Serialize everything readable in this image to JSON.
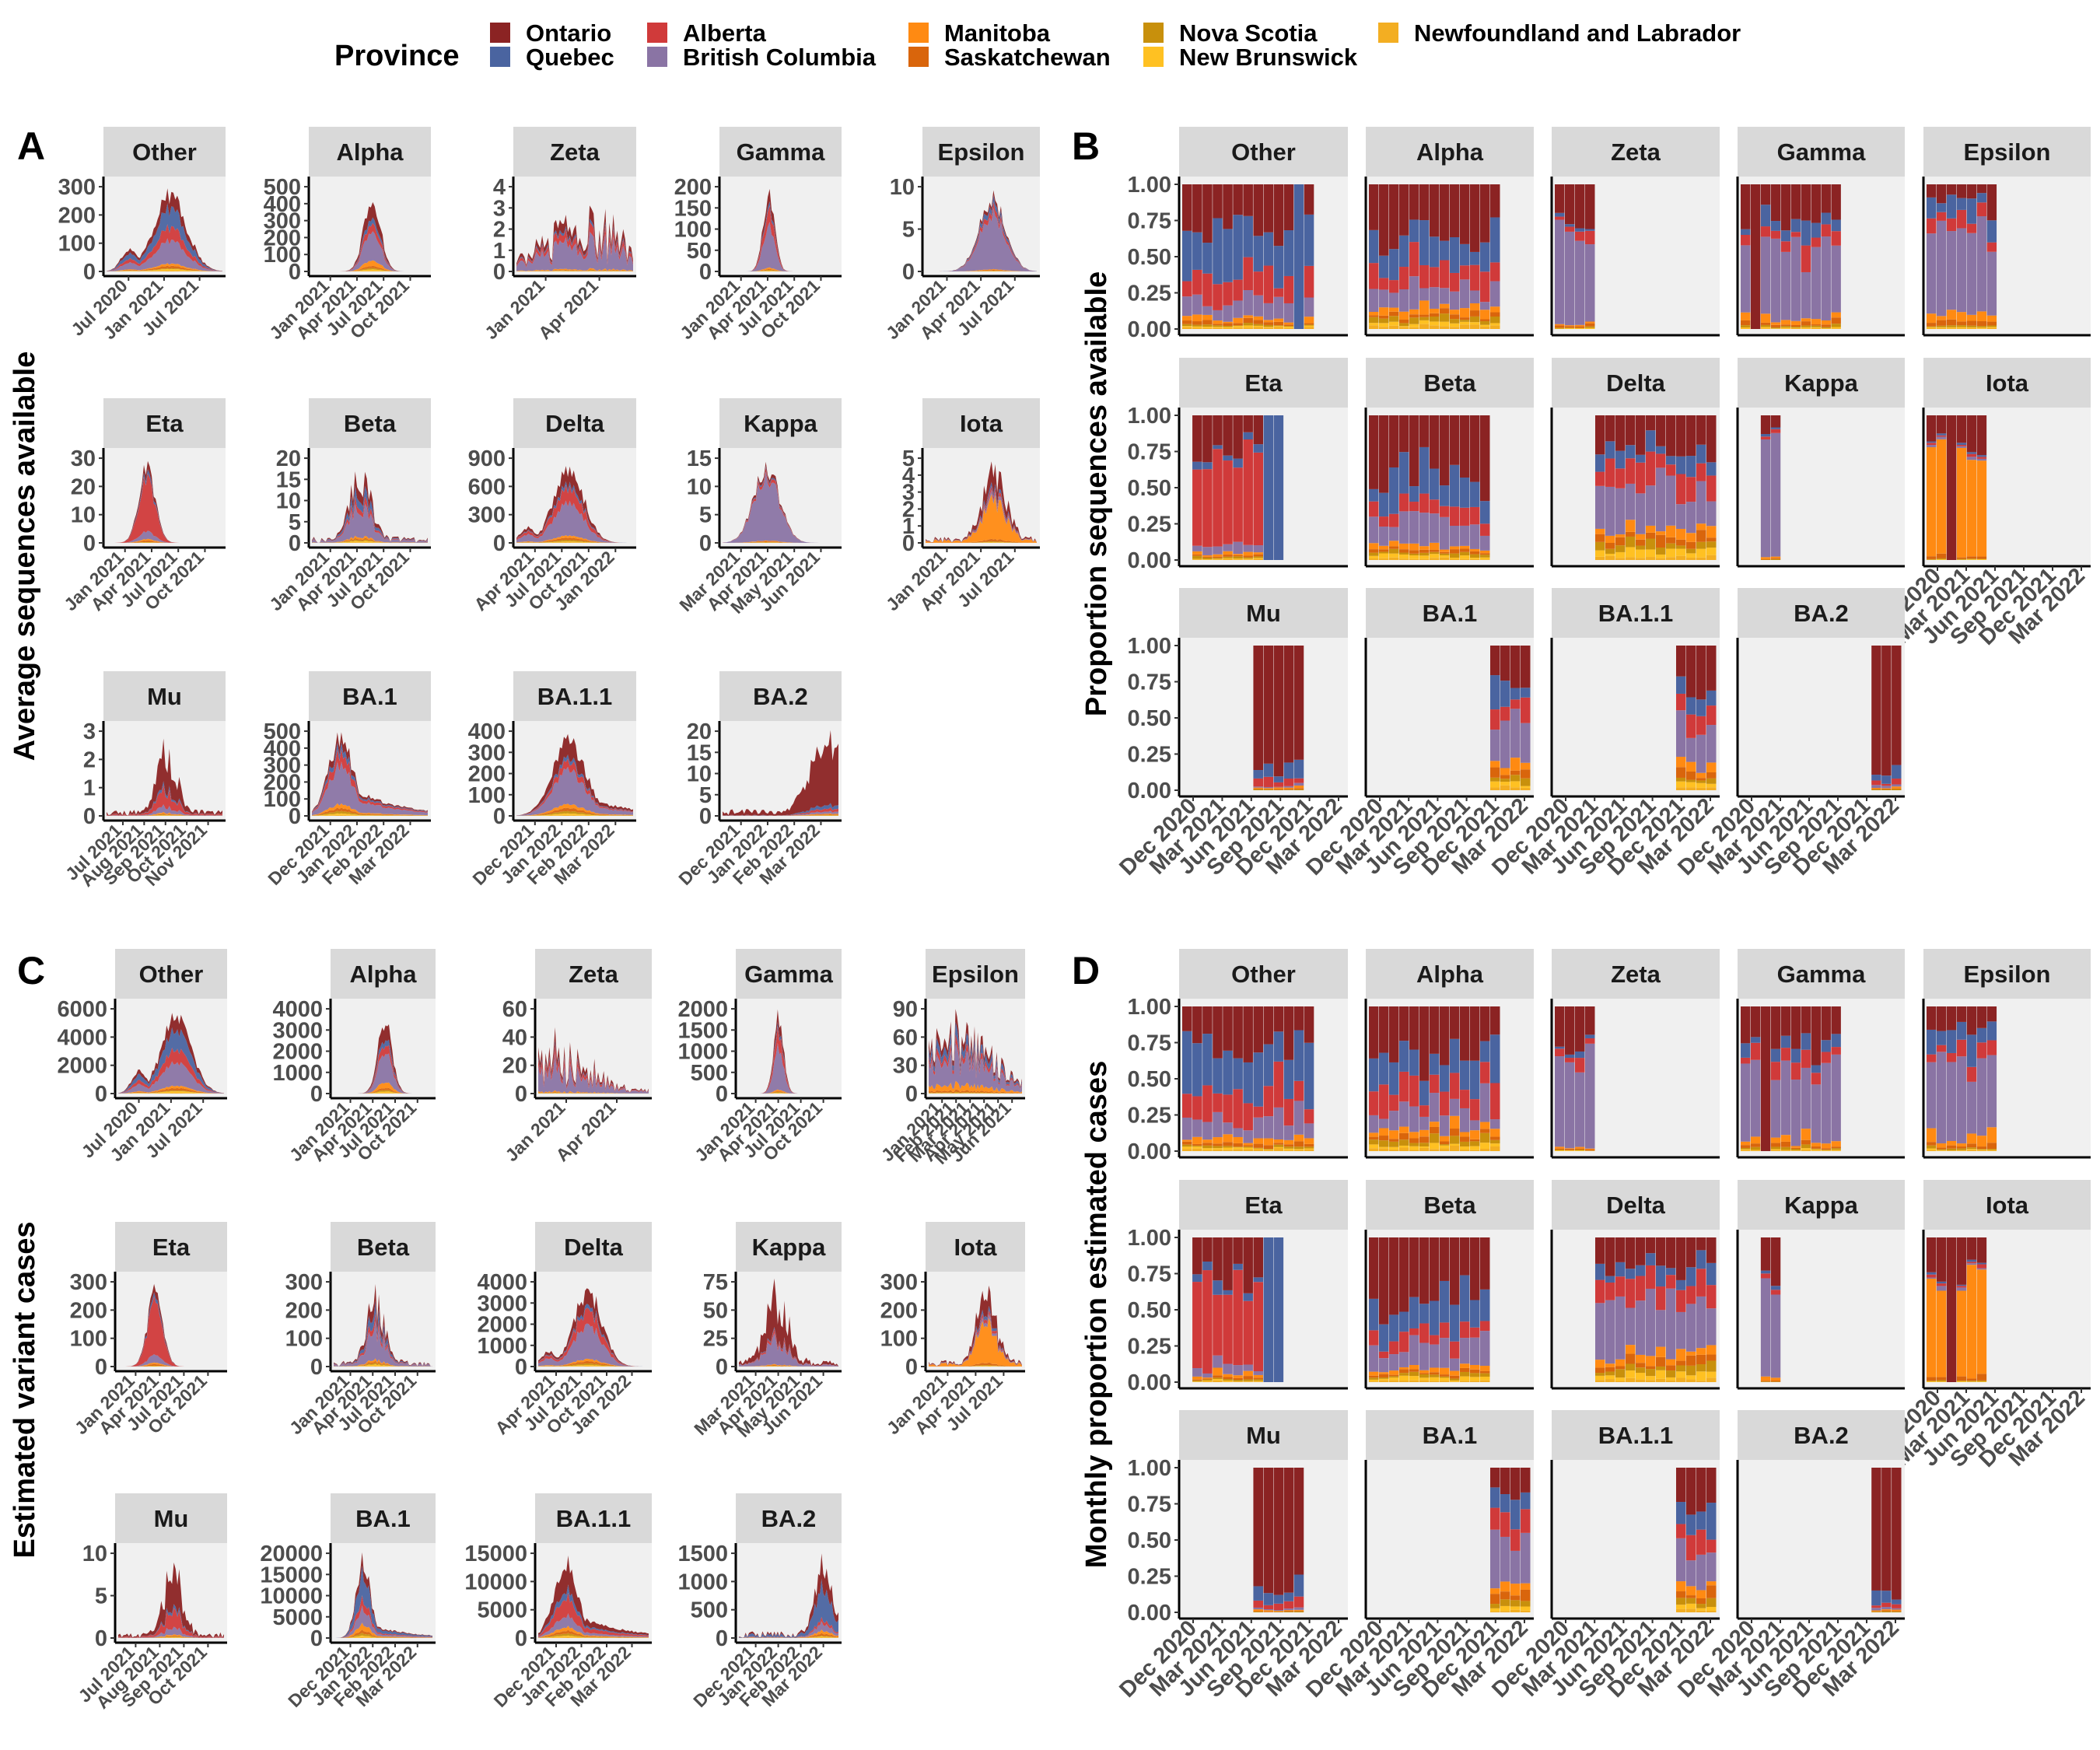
{
  "legend": {
    "title": "Province",
    "items": [
      {
        "name": "Ontario",
        "color": "#8B2323"
      },
      {
        "name": "Quebec",
        "color": "#4A64A0"
      },
      {
        "name": "Alberta",
        "color": "#D03A3A"
      },
      {
        "name": "British Columbia",
        "color": "#8A74A4"
      },
      {
        "name": "Manitoba",
        "color": "#FF8A12"
      },
      {
        "name": "Saskatchewan",
        "color": "#D9650C"
      },
      {
        "name": "Nova Scotia",
        "color": "#C8900C"
      },
      {
        "name": "New Brunswick",
        "color": "#FFC122"
      },
      {
        "name": "Newfoundland and Labrador",
        "color": "#F3AE22"
      }
    ]
  },
  "chart_data": [
    {
      "id": "A",
      "letter": "A",
      "type": "area",
      "ylabel": "Average sequences available",
      "facets": [
        {
          "name": "Other",
          "yticks": [
            0,
            100,
            200,
            300
          ],
          "xticks": [
            "Jul 2020",
            "Jan 2021",
            "Jul 2021"
          ]
        },
        {
          "name": "Alpha",
          "yticks": [
            0,
            100,
            200,
            300,
            400,
            500
          ],
          "xticks": [
            "Jan 2021",
            "Apr 2021",
            "Jul 2021",
            "Oct 2021"
          ]
        },
        {
          "name": "Zeta",
          "yticks": [
            0,
            1,
            2,
            3,
            4
          ],
          "xticks": [
            "Jan 2021",
            "Apr 2021"
          ]
        },
        {
          "name": "Gamma",
          "yticks": [
            0,
            50,
            100,
            150,
            200
          ],
          "xticks": [
            "Jan 2021",
            "Apr 2021",
            "Jul 2021",
            "Oct 2021"
          ]
        },
        {
          "name": "Epsilon",
          "yticks": [
            0,
            5,
            10
          ],
          "xticks": [
            "Jan 2021",
            "Apr 2021",
            "Jul 2021"
          ]
        },
        {
          "name": "Eta",
          "yticks": [
            0,
            10,
            20,
            30
          ],
          "xticks": [
            "Jan 2021",
            "Apr 2021",
            "Jul 2021",
            "Oct 2021"
          ]
        },
        {
          "name": "Beta",
          "yticks": [
            0,
            5,
            10,
            15,
            20
          ],
          "xticks": [
            "Jan 2021",
            "Apr 2021",
            "Jul 2021",
            "Oct 2021"
          ]
        },
        {
          "name": "Delta",
          "yticks": [
            0,
            300,
            600,
            900
          ],
          "xticks": [
            "Apr 2021",
            "Jul 2021",
            "Oct 2021",
            "Jan 2022"
          ]
        },
        {
          "name": "Kappa",
          "yticks": [
            0,
            5,
            10,
            15
          ],
          "xticks": [
            "Mar 2021",
            "Apr 2021",
            "May 2021",
            "Jun 2021"
          ]
        },
        {
          "name": "Iota",
          "yticks": [
            0,
            1,
            2,
            3,
            4,
            5
          ],
          "xticks": [
            "Jan 2021",
            "Apr 2021",
            "Jul 2021"
          ]
        },
        {
          "name": "Mu",
          "yticks": [
            0,
            1,
            2,
            3
          ],
          "xticks": [
            "Jul 2021",
            "Aug 2021",
            "Sep 2021",
            "Oct 2021",
            "Nov 2021"
          ]
        },
        {
          "name": "BA.1",
          "yticks": [
            0,
            100,
            200,
            300,
            400,
            500
          ],
          "xticks": [
            "Dec 2021",
            "Jan 2022",
            "Feb 2022",
            "Mar 2022"
          ]
        },
        {
          "name": "BA.1.1",
          "yticks": [
            0,
            100,
            200,
            300,
            400
          ],
          "xticks": [
            "Dec 2021",
            "Jan 2022",
            "Feb 2022",
            "Mar 2022"
          ]
        },
        {
          "name": "BA.2",
          "yticks": [
            0,
            5,
            10,
            15,
            20
          ],
          "xticks": [
            "Dec 2021",
            "Jan 2022",
            "Feb 2022",
            "Mar 2022"
          ]
        }
      ]
    },
    {
      "id": "B",
      "letter": "B",
      "type": "bar",
      "ylabel": "Proportion sequences available",
      "yticks": [
        "0.00",
        "0.25",
        "0.50",
        "0.75",
        "1.00"
      ],
      "xticks": [
        "Dec 2020",
        "Mar 2021",
        "Jun 2021",
        "Sep 2021",
        "Dec 2021",
        "Mar 2022"
      ],
      "facets": [
        "Other",
        "Alpha",
        "Zeta",
        "Gamma",
        "Epsilon",
        "Eta",
        "Beta",
        "Delta",
        "Kappa",
        "Iota",
        "Mu",
        "BA.1",
        "BA.1.1",
        "BA.2"
      ]
    },
    {
      "id": "C",
      "letter": "C",
      "type": "area",
      "ylabel": "Estimated variant cases",
      "facets": [
        {
          "name": "Other",
          "yticks": [
            0,
            2000,
            4000,
            6000
          ],
          "xticks": [
            "Jul 2020",
            "Jan 2021",
            "Jul 2021"
          ]
        },
        {
          "name": "Alpha",
          "yticks": [
            0,
            1000,
            2000,
            3000,
            4000
          ],
          "xticks": [
            "Jan 2021",
            "Apr 2021",
            "Jul 2021",
            "Oct 2021"
          ]
        },
        {
          "name": "Zeta",
          "yticks": [
            0,
            20,
            40,
            60
          ],
          "xticks": [
            "Jan 2021",
            "Apr 2021"
          ]
        },
        {
          "name": "Gamma",
          "yticks": [
            0,
            500,
            1000,
            1500,
            2000
          ],
          "xticks": [
            "Jan 2021",
            "Apr 2021",
            "Jul 2021",
            "Oct 2021"
          ]
        },
        {
          "name": "Epsilon",
          "yticks": [
            0,
            30,
            60,
            90
          ],
          "xticks": [
            "Jan 2021",
            "Feb 2021",
            "Mar 2021",
            "Apr 2021",
            "May 2021",
            "Jun 2021"
          ]
        },
        {
          "name": "Eta",
          "yticks": [
            0,
            100,
            200,
            300
          ],
          "xticks": [
            "Jan 2021",
            "Apr 2021",
            "Jul 2021",
            "Oct 2021"
          ]
        },
        {
          "name": "Beta",
          "yticks": [
            0,
            100,
            200,
            300
          ],
          "xticks": [
            "Jan 2021",
            "Apr 2021",
            "Jul 2021",
            "Oct 2021"
          ]
        },
        {
          "name": "Delta",
          "yticks": [
            0,
            1000,
            2000,
            3000,
            4000
          ],
          "xticks": [
            "Apr 2021",
            "Jul 2021",
            "Oct 2021",
            "Jan 2022"
          ]
        },
        {
          "name": "Kappa",
          "yticks": [
            0,
            25,
            50,
            75
          ],
          "xticks": [
            "Mar 2021",
            "Apr 2021",
            "May 2021",
            "Jun 2021"
          ]
        },
        {
          "name": "Iota",
          "yticks": [
            0,
            100,
            200,
            300
          ],
          "xticks": [
            "Jan 2021",
            "Apr 2021",
            "Jul 2021"
          ]
        },
        {
          "name": "Mu",
          "yticks": [
            0,
            5,
            10
          ],
          "xticks": [
            "Jul 2021",
            "Aug 2021",
            "Sep 2021",
            "Oct 2021"
          ]
        },
        {
          "name": "BA.1",
          "yticks": [
            0,
            5000,
            10000,
            15000,
            20000
          ],
          "xticks": [
            "Dec 2021",
            "Jan 2022",
            "Feb 2022",
            "Mar 2022"
          ]
        },
        {
          "name": "BA.1.1",
          "yticks": [
            0,
            5000,
            10000,
            15000
          ],
          "xticks": [
            "Dec 2021",
            "Jan 2022",
            "Feb 2022",
            "Mar 2022"
          ]
        },
        {
          "name": "BA.2",
          "yticks": [
            0,
            500,
            1000,
            1500
          ],
          "xticks": [
            "Dec 2021",
            "Jan 2022",
            "Feb 2022",
            "Mar 2022"
          ]
        }
      ]
    },
    {
      "id": "D",
      "letter": "D",
      "type": "bar",
      "ylabel": "Monthly proportion estimated cases",
      "yticks": [
        "0.00",
        "0.25",
        "0.50",
        "0.75",
        "1.00"
      ],
      "xticks": [
        "Dec 2020",
        "Mar 2021",
        "Jun 2021",
        "Sep 2021",
        "Dec 2021",
        "Mar 2022"
      ],
      "facets": [
        "Other",
        "Alpha",
        "Zeta",
        "Gamma",
        "Epsilon",
        "Eta",
        "Beta",
        "Delta",
        "Kappa",
        "Iota",
        "Mu",
        "BA.1",
        "BA.1.1",
        "BA.2"
      ]
    }
  ]
}
